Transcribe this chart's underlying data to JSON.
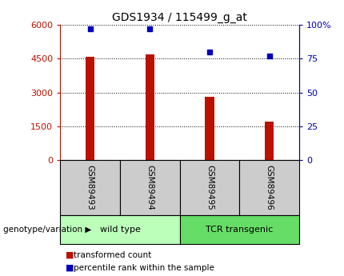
{
  "title": "GDS1934 / 115499_g_at",
  "samples": [
    "GSM89493",
    "GSM89494",
    "GSM89495",
    "GSM89496"
  ],
  "bar_values": [
    4580,
    4700,
    2820,
    1720
  ],
  "percentile_values": [
    97,
    97,
    80,
    77
  ],
  "bar_color": "#bb1100",
  "dot_color": "#0000bb",
  "ylim_left": [
    0,
    6000
  ],
  "ylim_right": [
    0,
    100
  ],
  "yticks_left": [
    0,
    1500,
    3000,
    4500,
    6000
  ],
  "ytick_labels_left": [
    "0",
    "1500",
    "3000",
    "4500",
    "6000"
  ],
  "yticks_right": [
    0,
    25,
    50,
    75,
    100
  ],
  "ytick_labels_right": [
    "0",
    "25",
    "50",
    "75",
    "100%"
  ],
  "genotype_label": "genotype/variation",
  "legend_bar_label": "transformed count",
  "legend_dot_label": "percentile rank within the sample",
  "background_color": "#ffffff",
  "sample_box_color": "#cccccc",
  "group1_color": "#bbffbb",
  "group2_color": "#66dd66",
  "group1_label": "wild type",
  "group2_label": "TCR transgenic"
}
